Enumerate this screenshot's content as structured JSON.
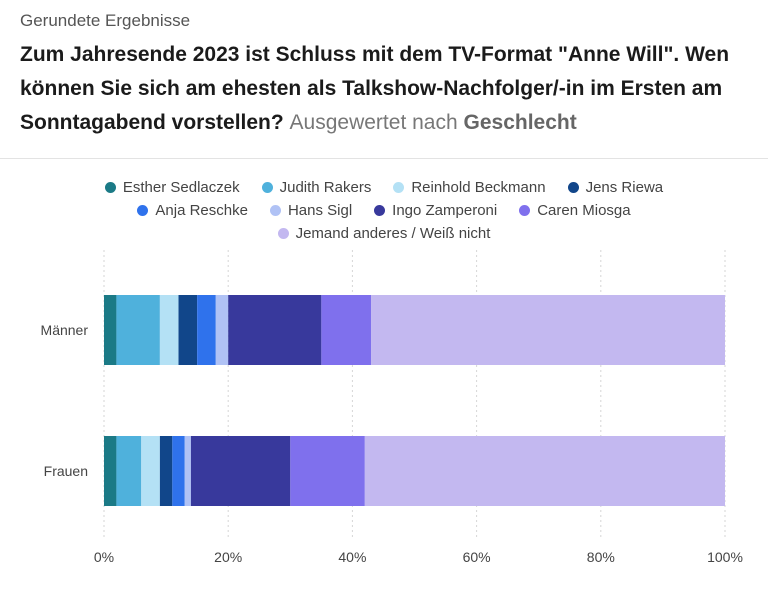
{
  "header": {
    "kicker": "Gerundete Ergebnisse",
    "question": "Zum Jahresende 2023 ist Schluss mit dem TV-Format \"Anne Will\". Wen können Sie sich am ehesten als Talkshow-Nachfolger/-in im Ersten am Sonntagabend vorstellen?",
    "evaluated_by": "Ausgewertet nach",
    "evaluated_field": "Geschlecht"
  },
  "chart_data": {
    "type": "bar",
    "orientation": "horizontal",
    "stacked": true,
    "categories": [
      "Männer",
      "Frauen"
    ],
    "series": [
      {
        "name": "Esther Sedlaczek",
        "color": "#1b7a86",
        "values": [
          2,
          2
        ]
      },
      {
        "name": "Judith Rakers",
        "color": "#4fb1dc",
        "values": [
          7,
          4
        ]
      },
      {
        "name": "Reinhold Beckmann",
        "color": "#b4e1f5",
        "values": [
          3,
          3
        ]
      },
      {
        "name": "Jens Riewa",
        "color": "#11468a",
        "values": [
          3,
          2
        ]
      },
      {
        "name": "Anja Reschke",
        "color": "#2f72ec",
        "values": [
          3,
          2
        ]
      },
      {
        "name": "Hans Sigl",
        "color": "#b0c2f5",
        "values": [
          2,
          1
        ]
      },
      {
        "name": "Ingo Zamperoni",
        "color": "#38399c",
        "values": [
          15,
          16
        ]
      },
      {
        "name": "Caren Miosga",
        "color": "#7f70ed",
        "values": [
          8,
          12
        ]
      },
      {
        "name": "Jemand anderes / Weiß nicht",
        "color": "#c3b8f0",
        "values": [
          57,
          58
        ]
      }
    ],
    "xlim": [
      0,
      100
    ],
    "x_ticks": [
      "0%",
      "20%",
      "40%",
      "60%",
      "80%",
      "100%"
    ],
    "grid": true,
    "legend_position": "top"
  }
}
